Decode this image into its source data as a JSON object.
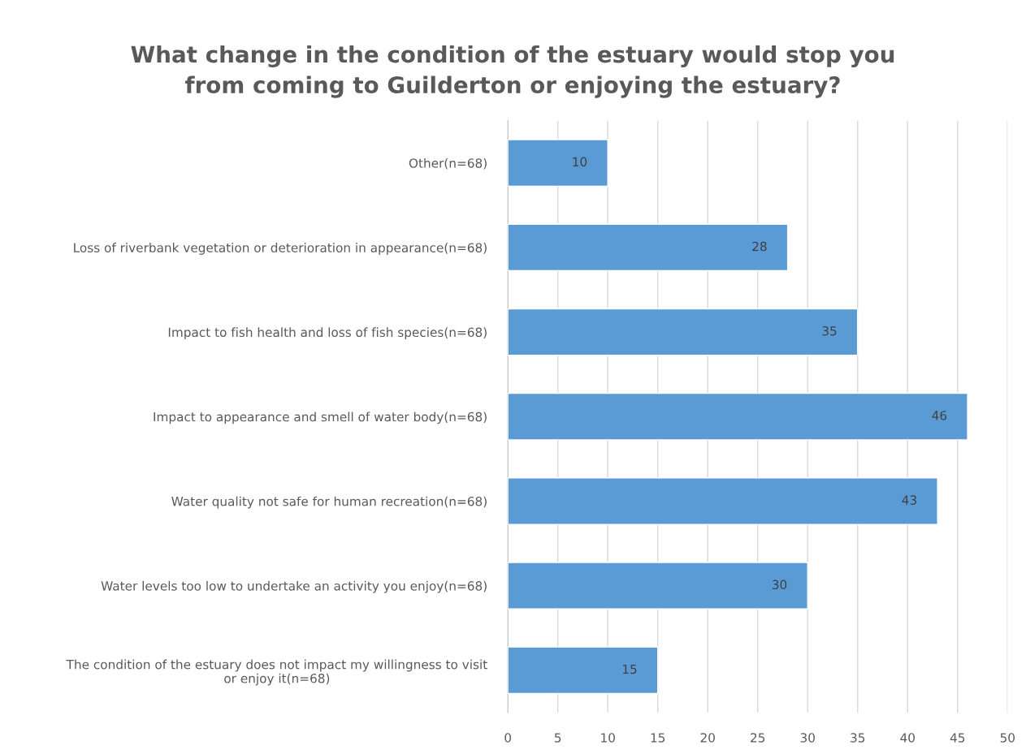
{
  "chart_data": {
    "type": "bar",
    "orientation": "horizontal",
    "title": "What change in the condition of the estuary would stop you\nfrom coming to Guilderton or enjoying the estuary?",
    "categories": [
      "Other(n=68)",
      "Loss of riverbank vegetation or deterioration in appearance(n=68)",
      "Impact to fish health and loss of fish species(n=68)",
      "Impact to appearance and smell of water body(n=68)",
      "Water quality not safe for human recreation(n=68)",
      "Water levels too low to undertake an activity you enjoy(n=68)",
      "The condition of the estuary does not impact my willingness to visit\nor enjoy it(n=68)"
    ],
    "values": [
      10,
      28,
      35,
      46,
      43,
      30,
      15
    ],
    "color": "#5b9bd5",
    "data_labels": true,
    "xlim": [
      0,
      50
    ],
    "xticks": [
      0,
      5,
      10,
      15,
      20,
      25,
      30,
      35,
      40,
      45,
      50
    ],
    "grid": "x"
  }
}
